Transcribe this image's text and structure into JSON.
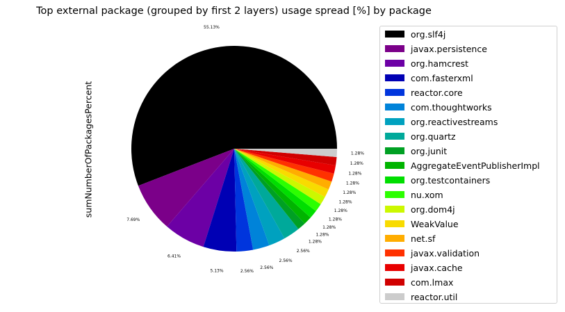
{
  "chart_data": {
    "type": "pie",
    "title": "Top external package (grouped by first 2 layers) usage spread [%] by package",
    "ylabel": "sumNumberOfPackagesPercent",
    "legend_position": "right",
    "slices": [
      {
        "label": "org.slf4j",
        "value": 55.13,
        "color": "#000000",
        "pct_label": "55.13%"
      },
      {
        "label": "javax.persistence",
        "value": 7.69,
        "color": "#7b0089",
        "pct_label": "7.69%"
      },
      {
        "label": "org.hamcrest",
        "value": 6.41,
        "color": "#6c00a5",
        "pct_label": "6.41%"
      },
      {
        "label": "com.fasterxml",
        "value": 5.13,
        "color": "#0000b4",
        "pct_label": "5.13%"
      },
      {
        "label": "reactor.core",
        "value": 2.56,
        "color": "#0035dd",
        "pct_label": "2.56%"
      },
      {
        "label": "com.thoughtworks",
        "value": 2.56,
        "color": "#0083d9",
        "pct_label": "2.56%"
      },
      {
        "label": "org.reactivestreams",
        "value": 2.56,
        "color": "#00a1bf",
        "pct_label": "2.56%"
      },
      {
        "label": "org.quartz",
        "value": 2.56,
        "color": "#00a99a",
        "pct_label": "2.56%"
      },
      {
        "label": "org.junit",
        "value": 1.28,
        "color": "#00a023",
        "pct_label": "1.28%"
      },
      {
        "label": "AggregateEventPublisherImpl",
        "value": 1.28,
        "color": "#00b400",
        "pct_label": "1.28%"
      },
      {
        "label": "org.testcontainers",
        "value": 1.28,
        "color": "#00de00",
        "pct_label": "1.28%"
      },
      {
        "label": "nu.xom",
        "value": 1.28,
        "color": "#2cff00",
        "pct_label": "1.28%"
      },
      {
        "label": "org.dom4j",
        "value": 1.28,
        "color": "#ccf800",
        "pct_label": "1.28%"
      },
      {
        "label": "WeakValue",
        "value": 1.28,
        "color": "#f8db00",
        "pct_label": "1.28%"
      },
      {
        "label": "net.sf",
        "value": 1.28,
        "color": "#ffad00",
        "pct_label": "1.28%"
      },
      {
        "label": "javax.validation",
        "value": 1.28,
        "color": "#ff3100",
        "pct_label": "1.28%"
      },
      {
        "label": "javax.cache",
        "value": 1.28,
        "color": "#e80000",
        "pct_label": "1.28%"
      },
      {
        "label": "com.lmax",
        "value": 1.28,
        "color": "#d00000",
        "pct_label": "1.28%"
      },
      {
        "label": "reactor.util",
        "value": 1.28,
        "color": "#cccccc",
        "pct_label": "1.28%"
      }
    ]
  }
}
